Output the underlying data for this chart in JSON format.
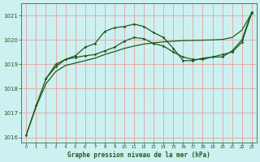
{
  "xlabel": "Graphe pression niveau de la mer (hPa)",
  "ylim": [
    1015.8,
    1021.5
  ],
  "xlim": [
    -0.5,
    23.5
  ],
  "yticks": [
    1016,
    1017,
    1018,
    1019,
    1020,
    1021
  ],
  "xticks": [
    0,
    1,
    2,
    3,
    4,
    5,
    6,
    7,
    8,
    9,
    10,
    11,
    12,
    13,
    14,
    15,
    16,
    17,
    18,
    19,
    20,
    21,
    22,
    23
  ],
  "bg_color": "#cdf0f0",
  "grid_color": "#e8a0a0",
  "line_color": "#1a5c1a",
  "series_volatile_x": [
    0,
    1,
    2,
    3,
    4,
    5,
    6,
    7,
    8,
    9,
    10,
    11,
    12,
    13,
    14,
    15,
    16,
    17,
    18,
    19,
    20,
    21,
    22,
    23
  ],
  "series_volatile_y": [
    1016.1,
    1017.3,
    1018.4,
    1019.0,
    1019.2,
    1019.35,
    1019.7,
    1019.85,
    1020.35,
    1020.5,
    1020.55,
    1020.65,
    1020.55,
    1020.3,
    1020.1,
    1019.65,
    1019.15,
    1019.15,
    1019.25,
    1019.3,
    1019.3,
    1019.55,
    1020.0,
    1021.15
  ],
  "series_mid_x": [
    2,
    3,
    4,
    5,
    6,
    7,
    8,
    9,
    10,
    11,
    12,
    13,
    14,
    15,
    16,
    17,
    18,
    19,
    20,
    21,
    22,
    23
  ],
  "series_mid_y": [
    1018.4,
    1018.9,
    1019.2,
    1019.28,
    1019.35,
    1019.4,
    1019.55,
    1019.7,
    1019.95,
    1020.1,
    1020.05,
    1019.85,
    1019.75,
    1019.5,
    1019.3,
    1019.2,
    1019.2,
    1019.3,
    1019.4,
    1019.5,
    1019.9,
    1021.1
  ],
  "series_straight_x": [
    0,
    1,
    2,
    3,
    4,
    5,
    6,
    7,
    8,
    9,
    10,
    11,
    12,
    13,
    14,
    15,
    16,
    17,
    18,
    19,
    20,
    21,
    22,
    23
  ],
  "series_straight_y": [
    1016.1,
    1017.25,
    1018.2,
    1018.7,
    1018.95,
    1019.05,
    1019.15,
    1019.25,
    1019.4,
    1019.52,
    1019.65,
    1019.75,
    1019.83,
    1019.88,
    1019.92,
    1019.95,
    1019.97,
    1019.98,
    1019.99,
    1020.0,
    1020.02,
    1020.1,
    1020.4,
    1021.1
  ]
}
